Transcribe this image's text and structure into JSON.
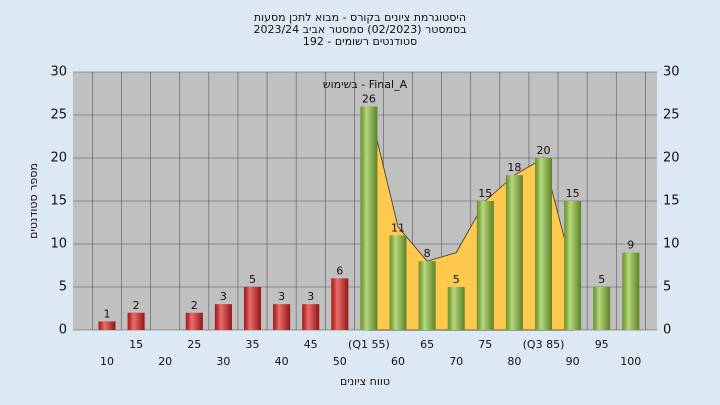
{
  "chart_data": {
    "type": "bar",
    "title": [
      "היסטוגרמת ציונים בקורס - מבוא לתכן מסעות",
      "בסמסטר (02/2023) סמסטר אביב 2023/24",
      "סטודנטים רשומים - 192"
    ],
    "annotation": "בשימוש - Final_A",
    "xlabel": "טווח ציונים",
    "ylabel": "מספר סטודנטים",
    "categories": [
      "10",
      "15",
      "20",
      "25",
      "30",
      "35",
      "40",
      "45",
      "50",
      "(Q1 55)",
      "60",
      "65",
      "70",
      "75",
      "80",
      "(Q3 85)",
      "90",
      "95",
      "100"
    ],
    "values": [
      1,
      2,
      null,
      2,
      3,
      5,
      3,
      3,
      6,
      26,
      11,
      8,
      5,
      15,
      18,
      20,
      15,
      5,
      9
    ],
    "colors": [
      "#e02020",
      "#e02020",
      "#e02020",
      "#e02020",
      "#e02020",
      "#e02020",
      "#e02020",
      "#e02020",
      "#e02020",
      "#8fc53a",
      "#8fc53a",
      "#8fc53a",
      "#8fc53a",
      "#8fc53a",
      "#8fc53a",
      "#8fc53a",
      "#8fc53a",
      "#8fc53a",
      "#8fc53a"
    ],
    "area": {
      "color": "#ffc94d",
      "values": [
        null,
        null,
        null,
        null,
        null,
        null,
        null,
        null,
        null,
        26,
        12,
        8,
        9,
        15,
        18,
        20,
        7,
        null,
        null
      ]
    },
    "ylim": [
      0,
      30
    ],
    "yticks": [
      0,
      5,
      10,
      15,
      20,
      25,
      30
    ],
    "grid": true
  }
}
